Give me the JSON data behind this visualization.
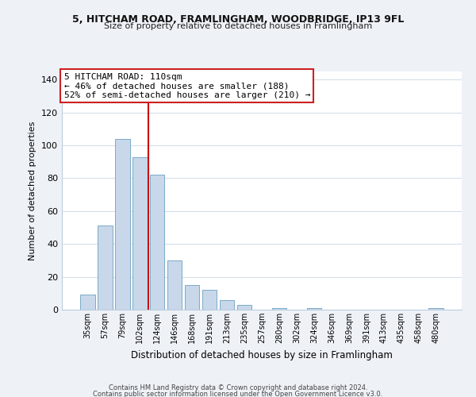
{
  "title1": "5, HITCHAM ROAD, FRAMLINGHAM, WOODBRIDGE, IP13 9FL",
  "title2": "Size of property relative to detached houses in Framlingham",
  "xlabel": "Distribution of detached houses by size in Framlingham",
  "ylabel": "Number of detached properties",
  "bar_labels": [
    "35sqm",
    "57sqm",
    "79sqm",
    "102sqm",
    "124sqm",
    "146sqm",
    "168sqm",
    "191sqm",
    "213sqm",
    "235sqm",
    "257sqm",
    "280sqm",
    "302sqm",
    "324sqm",
    "346sqm",
    "369sqm",
    "391sqm",
    "413sqm",
    "435sqm",
    "458sqm",
    "480sqm"
  ],
  "bar_values": [
    9,
    51,
    104,
    93,
    82,
    30,
    15,
    12,
    6,
    3,
    0,
    1,
    0,
    1,
    0,
    0,
    0,
    0,
    0,
    0,
    1
  ],
  "bar_color": "#c8d8ea",
  "bar_edge_color": "#7aaac8",
  "vline_x": 3.5,
  "vline_color": "#cc0000",
  "ylim": [
    0,
    145
  ],
  "yticks": [
    0,
    20,
    40,
    60,
    80,
    100,
    120,
    140
  ],
  "annotation_title": "5 HITCHAM ROAD: 110sqm",
  "annotation_line1": "← 46% of detached houses are smaller (188)",
  "annotation_line2": "52% of semi-detached houses are larger (210) →",
  "footer1": "Contains HM Land Registry data © Crown copyright and database right 2024.",
  "footer2": "Contains public sector information licensed under the Open Government Licence v3.0.",
  "background_color": "#eef2f7",
  "plot_bg_color": "#ffffff",
  "grid_color": "#d0dce8"
}
